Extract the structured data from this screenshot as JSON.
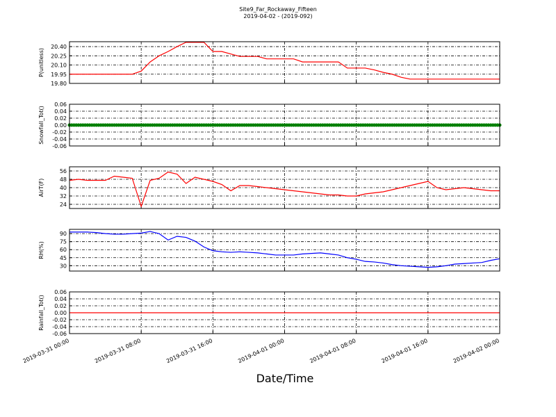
{
  "title": "Site9_Far_Rockaway_Fifteen",
  "subtitle": "2019-04-02 - (2019-092)",
  "xlabel": "Date/Time",
  "chart_data": [
    {
      "type": "line",
      "ylabel": "P(unitless)",
      "color": "#ff0000",
      "grid": true,
      "xlim": [
        "2019-03-31 00:00",
        "2019-04-02 00:00"
      ],
      "xticks": [
        "2019-03-31 00:00",
        "2019-03-31 08:00",
        "2019-03-31 16:00",
        "2019-04-01 00:00",
        "2019-04-01 08:00",
        "2019-04-01 16:00",
        "2019-04-02 00:00"
      ],
      "ylim": [
        19.8,
        20.48
      ],
      "yticks": [
        {
          "value": 19.8,
          "label": "19.80"
        },
        {
          "value": 19.95,
          "label": "19.95"
        },
        {
          "value": 20.1,
          "label": "20.10"
        },
        {
          "value": 20.25,
          "label": "20.25"
        },
        {
          "value": 20.4,
          "label": "20.40"
        }
      ],
      "x": [
        "2019-03-31 00:00",
        "2019-03-31 01:00",
        "2019-03-31 02:00",
        "2019-03-31 03:00",
        "2019-03-31 04:00",
        "2019-03-31 05:00",
        "2019-03-31 06:00",
        "2019-03-31 07:00",
        "2019-03-31 08:00",
        "2019-03-31 09:00",
        "2019-03-31 10:00",
        "2019-03-31 11:00",
        "2019-03-31 12:00",
        "2019-03-31 13:00",
        "2019-03-31 14:00",
        "2019-03-31 15:00",
        "2019-03-31 16:00",
        "2019-03-31 17:00",
        "2019-03-31 18:00",
        "2019-03-31 19:00",
        "2019-03-31 20:00",
        "2019-03-31 21:00",
        "2019-03-31 22:00",
        "2019-03-31 23:00",
        "2019-04-01 00:00",
        "2019-04-01 01:00",
        "2019-04-01 02:00",
        "2019-04-01 03:00",
        "2019-04-01 04:00",
        "2019-04-01 05:00",
        "2019-04-01 06:00",
        "2019-04-01 07:00",
        "2019-04-01 08:00",
        "2019-04-01 09:00",
        "2019-04-01 10:00",
        "2019-04-01 11:00",
        "2019-04-01 12:00",
        "2019-04-01 13:00",
        "2019-04-01 14:00",
        "2019-04-01 15:00",
        "2019-04-01 16:00",
        "2019-04-01 17:00",
        "2019-04-01 18:00",
        "2019-04-01 19:00",
        "2019-04-01 20:00",
        "2019-04-01 21:00",
        "2019-04-01 22:00",
        "2019-04-01 23:00",
        "2019-04-02 00:00"
      ],
      "values": [
        19.95,
        19.95,
        19.95,
        19.95,
        19.95,
        19.95,
        19.95,
        19.95,
        20.0,
        20.15,
        20.25,
        20.32,
        20.4,
        20.47,
        20.47,
        20.47,
        20.32,
        20.32,
        20.28,
        20.24,
        20.24,
        20.24,
        20.2,
        20.2,
        20.2,
        20.2,
        20.15,
        20.15,
        20.15,
        20.15,
        20.15,
        20.05,
        20.05,
        20.05,
        20.02,
        19.98,
        19.95,
        19.9,
        19.87,
        19.87,
        19.87,
        19.87,
        19.87,
        19.87,
        19.87,
        19.87,
        19.87,
        19.87,
        19.87
      ]
    },
    {
      "type": "scatter",
      "ylabel": "Snowfall_Tot()",
      "color": "#008000",
      "grid": true,
      "xlim": [
        "2019-03-31 00:00",
        "2019-04-02 00:00"
      ],
      "xticks": [
        "2019-03-31 00:00",
        "2019-03-31 08:00",
        "2019-03-31 16:00",
        "2019-04-01 00:00",
        "2019-04-01 08:00",
        "2019-04-01 16:00",
        "2019-04-02 00:00"
      ],
      "ylim": [
        -0.06,
        0.06
      ],
      "yticks": [
        {
          "value": -0.06,
          "label": "-0.06"
        },
        {
          "value": -0.04,
          "label": "-0.04"
        },
        {
          "value": -0.02,
          "label": "-0.02"
        },
        {
          "value": 0,
          "label": "0.00"
        },
        {
          "value": 0.02,
          "label": "0.02"
        },
        {
          "value": 0.04,
          "label": "0.04"
        },
        {
          "value": 0.06,
          "label": "0.06"
        }
      ],
      "x": [
        "2019-03-31 00:00",
        "2019-03-31 01:00",
        "2019-03-31 02:00",
        "2019-03-31 03:00",
        "2019-03-31 04:00",
        "2019-03-31 05:00",
        "2019-03-31 06:00",
        "2019-03-31 07:00",
        "2019-03-31 08:00",
        "2019-03-31 09:00",
        "2019-03-31 10:00",
        "2019-03-31 11:00",
        "2019-03-31 12:00",
        "2019-03-31 13:00",
        "2019-03-31 14:00",
        "2019-03-31 15:00",
        "2019-03-31 16:00",
        "2019-03-31 17:00",
        "2019-03-31 18:00",
        "2019-03-31 19:00",
        "2019-03-31 20:00",
        "2019-03-31 21:00",
        "2019-03-31 22:00",
        "2019-03-31 23:00",
        "2019-04-01 00:00",
        "2019-04-01 01:00",
        "2019-04-01 02:00",
        "2019-04-01 03:00",
        "2019-04-01 04:00",
        "2019-04-01 05:00",
        "2019-04-01 06:00",
        "2019-04-01 07:00",
        "2019-04-01 08:00",
        "2019-04-01 09:00",
        "2019-04-01 10:00",
        "2019-04-01 11:00",
        "2019-04-01 12:00",
        "2019-04-01 13:00",
        "2019-04-01 14:00",
        "2019-04-01 15:00",
        "2019-04-01 16:00",
        "2019-04-01 17:00",
        "2019-04-01 18:00",
        "2019-04-01 19:00",
        "2019-04-01 20:00",
        "2019-04-01 21:00",
        "2019-04-01 22:00",
        "2019-04-01 23:00",
        "2019-04-02 00:00"
      ],
      "values": [
        0,
        0,
        0,
        0,
        0,
        0,
        0,
        0,
        0,
        0,
        0,
        0,
        0,
        0,
        0,
        0,
        0,
        0,
        0,
        0,
        0,
        0,
        0,
        0,
        0,
        0,
        0,
        0,
        0,
        0,
        0,
        0,
        0,
        0,
        0,
        0,
        0,
        0,
        0,
        0,
        0,
        0,
        0,
        0,
        0,
        0,
        0,
        0,
        0
      ]
    },
    {
      "type": "line",
      "ylabel": "AirT(F)",
      "color": "#ff0000",
      "grid": true,
      "xlim": [
        "2019-03-31 00:00",
        "2019-04-02 00:00"
      ],
      "xticks": [
        "2019-03-31 00:00",
        "2019-03-31 08:00",
        "2019-03-31 16:00",
        "2019-04-01 00:00",
        "2019-04-01 08:00",
        "2019-04-01 16:00",
        "2019-04-02 00:00"
      ],
      "ylim": [
        20,
        60
      ],
      "yticks": [
        24,
        32,
        40,
        48,
        56
      ],
      "x": [
        "2019-03-31 00:00",
        "2019-03-31 01:00",
        "2019-03-31 02:00",
        "2019-03-31 03:00",
        "2019-03-31 04:00",
        "2019-03-31 05:00",
        "2019-03-31 06:00",
        "2019-03-31 07:00",
        "2019-03-31 08:00",
        "2019-03-31 09:00",
        "2019-03-31 10:00",
        "2019-03-31 11:00",
        "2019-03-31 12:00",
        "2019-03-31 13:00",
        "2019-03-31 14:00",
        "2019-03-31 15:00",
        "2019-03-31 16:00",
        "2019-03-31 17:00",
        "2019-03-31 18:00",
        "2019-03-31 19:00",
        "2019-03-31 20:00",
        "2019-03-31 21:00",
        "2019-03-31 22:00",
        "2019-03-31 23:00",
        "2019-04-01 00:00",
        "2019-04-01 01:00",
        "2019-04-01 02:00",
        "2019-04-01 03:00",
        "2019-04-01 04:00",
        "2019-04-01 05:00",
        "2019-04-01 06:00",
        "2019-04-01 07:00",
        "2019-04-01 08:00",
        "2019-04-01 09:00",
        "2019-04-01 10:00",
        "2019-04-01 11:00",
        "2019-04-01 12:00",
        "2019-04-01 13:00",
        "2019-04-01 14:00",
        "2019-04-01 15:00",
        "2019-04-01 16:00",
        "2019-04-01 17:00",
        "2019-04-01 18:00",
        "2019-04-01 19:00",
        "2019-04-01 20:00",
        "2019-04-01 21:00",
        "2019-04-01 22:00",
        "2019-04-01 23:00",
        "2019-04-02 00:00"
      ],
      "values": [
        47,
        48,
        47,
        47,
        47,
        51,
        50,
        49,
        22,
        47,
        49,
        55,
        53,
        44,
        50,
        48,
        46,
        43,
        37,
        42,
        42,
        41,
        40,
        39,
        38,
        37,
        36,
        35,
        34,
        33,
        33,
        32,
        32,
        34,
        35,
        36,
        38,
        40,
        42,
        44,
        46,
        40,
        38,
        39,
        40,
        39,
        38,
        37,
        37
      ]
    },
    {
      "type": "line",
      "ylabel": "RH(%)",
      "color": "#0000ff",
      "grid": true,
      "xlim": [
        "2019-03-31 00:00",
        "2019-04-02 00:00"
      ],
      "xticks": [
        "2019-03-31 00:00",
        "2019-03-31 08:00",
        "2019-03-31 16:00",
        "2019-04-01 00:00",
        "2019-04-01 08:00",
        "2019-04-01 16:00",
        "2019-04-02 00:00"
      ],
      "ylim": [
        20,
        98
      ],
      "yticks": [
        30,
        45,
        60,
        75,
        90
      ],
      "x": [
        "2019-03-31 00:00",
        "2019-03-31 01:00",
        "2019-03-31 02:00",
        "2019-03-31 03:00",
        "2019-03-31 04:00",
        "2019-03-31 05:00",
        "2019-03-31 06:00",
        "2019-03-31 07:00",
        "2019-03-31 08:00",
        "2019-03-31 09:00",
        "2019-03-31 10:00",
        "2019-03-31 11:00",
        "2019-03-31 12:00",
        "2019-03-31 13:00",
        "2019-03-31 14:00",
        "2019-03-31 15:00",
        "2019-03-31 16:00",
        "2019-03-31 17:00",
        "2019-03-31 18:00",
        "2019-03-31 19:00",
        "2019-03-31 20:00",
        "2019-03-31 21:00",
        "2019-03-31 22:00",
        "2019-03-31 23:00",
        "2019-04-01 00:00",
        "2019-04-01 01:00",
        "2019-04-01 02:00",
        "2019-04-01 03:00",
        "2019-04-01 04:00",
        "2019-04-01 05:00",
        "2019-04-01 06:00",
        "2019-04-01 07:00",
        "2019-04-01 08:00",
        "2019-04-01 09:00",
        "2019-04-01 10:00",
        "2019-04-01 11:00",
        "2019-04-01 12:00",
        "2019-04-01 13:00",
        "2019-04-01 14:00",
        "2019-04-01 15:00",
        "2019-04-01 16:00",
        "2019-04-01 17:00",
        "2019-04-01 18:00",
        "2019-04-01 19:00",
        "2019-04-01 20:00",
        "2019-04-01 21:00",
        "2019-04-01 22:00",
        "2019-04-01 23:00",
        "2019-04-02 00:00"
      ],
      "values": [
        93,
        93,
        93,
        92,
        90,
        89,
        89,
        90,
        91,
        94,
        90,
        78,
        85,
        83,
        76,
        65,
        58,
        56,
        55,
        56,
        55,
        54,
        52,
        50,
        50,
        50,
        52,
        53,
        54,
        52,
        50,
        45,
        42,
        38,
        37,
        35,
        32,
        30,
        29,
        28,
        27,
        28,
        30,
        33,
        34,
        35,
        36,
        40,
        43
      ]
    },
    {
      "type": "line",
      "ylabel": "Rainfall_Tot()",
      "color": "#ff0000",
      "grid": true,
      "xlim": [
        "2019-03-31 00:00",
        "2019-04-02 00:00"
      ],
      "xticks": [
        "2019-03-31 00:00",
        "2019-03-31 08:00",
        "2019-03-31 16:00",
        "2019-04-01 00:00",
        "2019-04-01 08:00",
        "2019-04-01 16:00",
        "2019-04-02 00:00"
      ],
      "ylim": [
        -0.06,
        0.06
      ],
      "yticks": [
        {
          "value": -0.06,
          "label": "-0.06"
        },
        {
          "value": -0.04,
          "label": "-0.04"
        },
        {
          "value": -0.02,
          "label": "-0.02"
        },
        {
          "value": 0,
          "label": "0.00"
        },
        {
          "value": 0.02,
          "label": "0.02"
        },
        {
          "value": 0.04,
          "label": "0.04"
        },
        {
          "value": 0.06,
          "label": "0.06"
        }
      ],
      "x": [
        "2019-03-31 00:00",
        "2019-03-31 01:00",
        "2019-03-31 02:00",
        "2019-03-31 03:00",
        "2019-03-31 04:00",
        "2019-03-31 05:00",
        "2019-03-31 06:00",
        "2019-03-31 07:00",
        "2019-03-31 08:00",
        "2019-03-31 09:00",
        "2019-03-31 10:00",
        "2019-03-31 11:00",
        "2019-03-31 12:00",
        "2019-03-31 13:00",
        "2019-03-31 14:00",
        "2019-03-31 15:00",
        "2019-03-31 16:00",
        "2019-03-31 17:00",
        "2019-03-31 18:00",
        "2019-03-31 19:00",
        "2019-03-31 20:00",
        "2019-03-31 21:00",
        "2019-03-31 22:00",
        "2019-03-31 23:00",
        "2019-04-01 00:00",
        "2019-04-01 01:00",
        "2019-04-01 02:00",
        "2019-04-01 03:00",
        "2019-04-01 04:00",
        "2019-04-01 05:00",
        "2019-04-01 06:00",
        "2019-04-01 07:00",
        "2019-04-01 08:00",
        "2019-04-01 09:00",
        "2019-04-01 10:00",
        "2019-04-01 11:00",
        "2019-04-01 12:00",
        "2019-04-01 13:00",
        "2019-04-01 14:00",
        "2019-04-01 15:00",
        "2019-04-01 16:00",
        "2019-04-01 17:00",
        "2019-04-01 18:00",
        "2019-04-01 19:00",
        "2019-04-01 20:00",
        "2019-04-01 21:00",
        "2019-04-01 22:00",
        "2019-04-01 23:00",
        "2019-04-02 00:00"
      ],
      "values": [
        0,
        0,
        0,
        0,
        0,
        0,
        0,
        0,
        0,
        0,
        0,
        0,
        0,
        0,
        0,
        0,
        0,
        0,
        0,
        0,
        0,
        0,
        0,
        0,
        0,
        0,
        0,
        0,
        0,
        0,
        0,
        0,
        0,
        0,
        0,
        0,
        0,
        0,
        0,
        0,
        0,
        0,
        0,
        0,
        0,
        0,
        0,
        0,
        0
      ]
    }
  ]
}
